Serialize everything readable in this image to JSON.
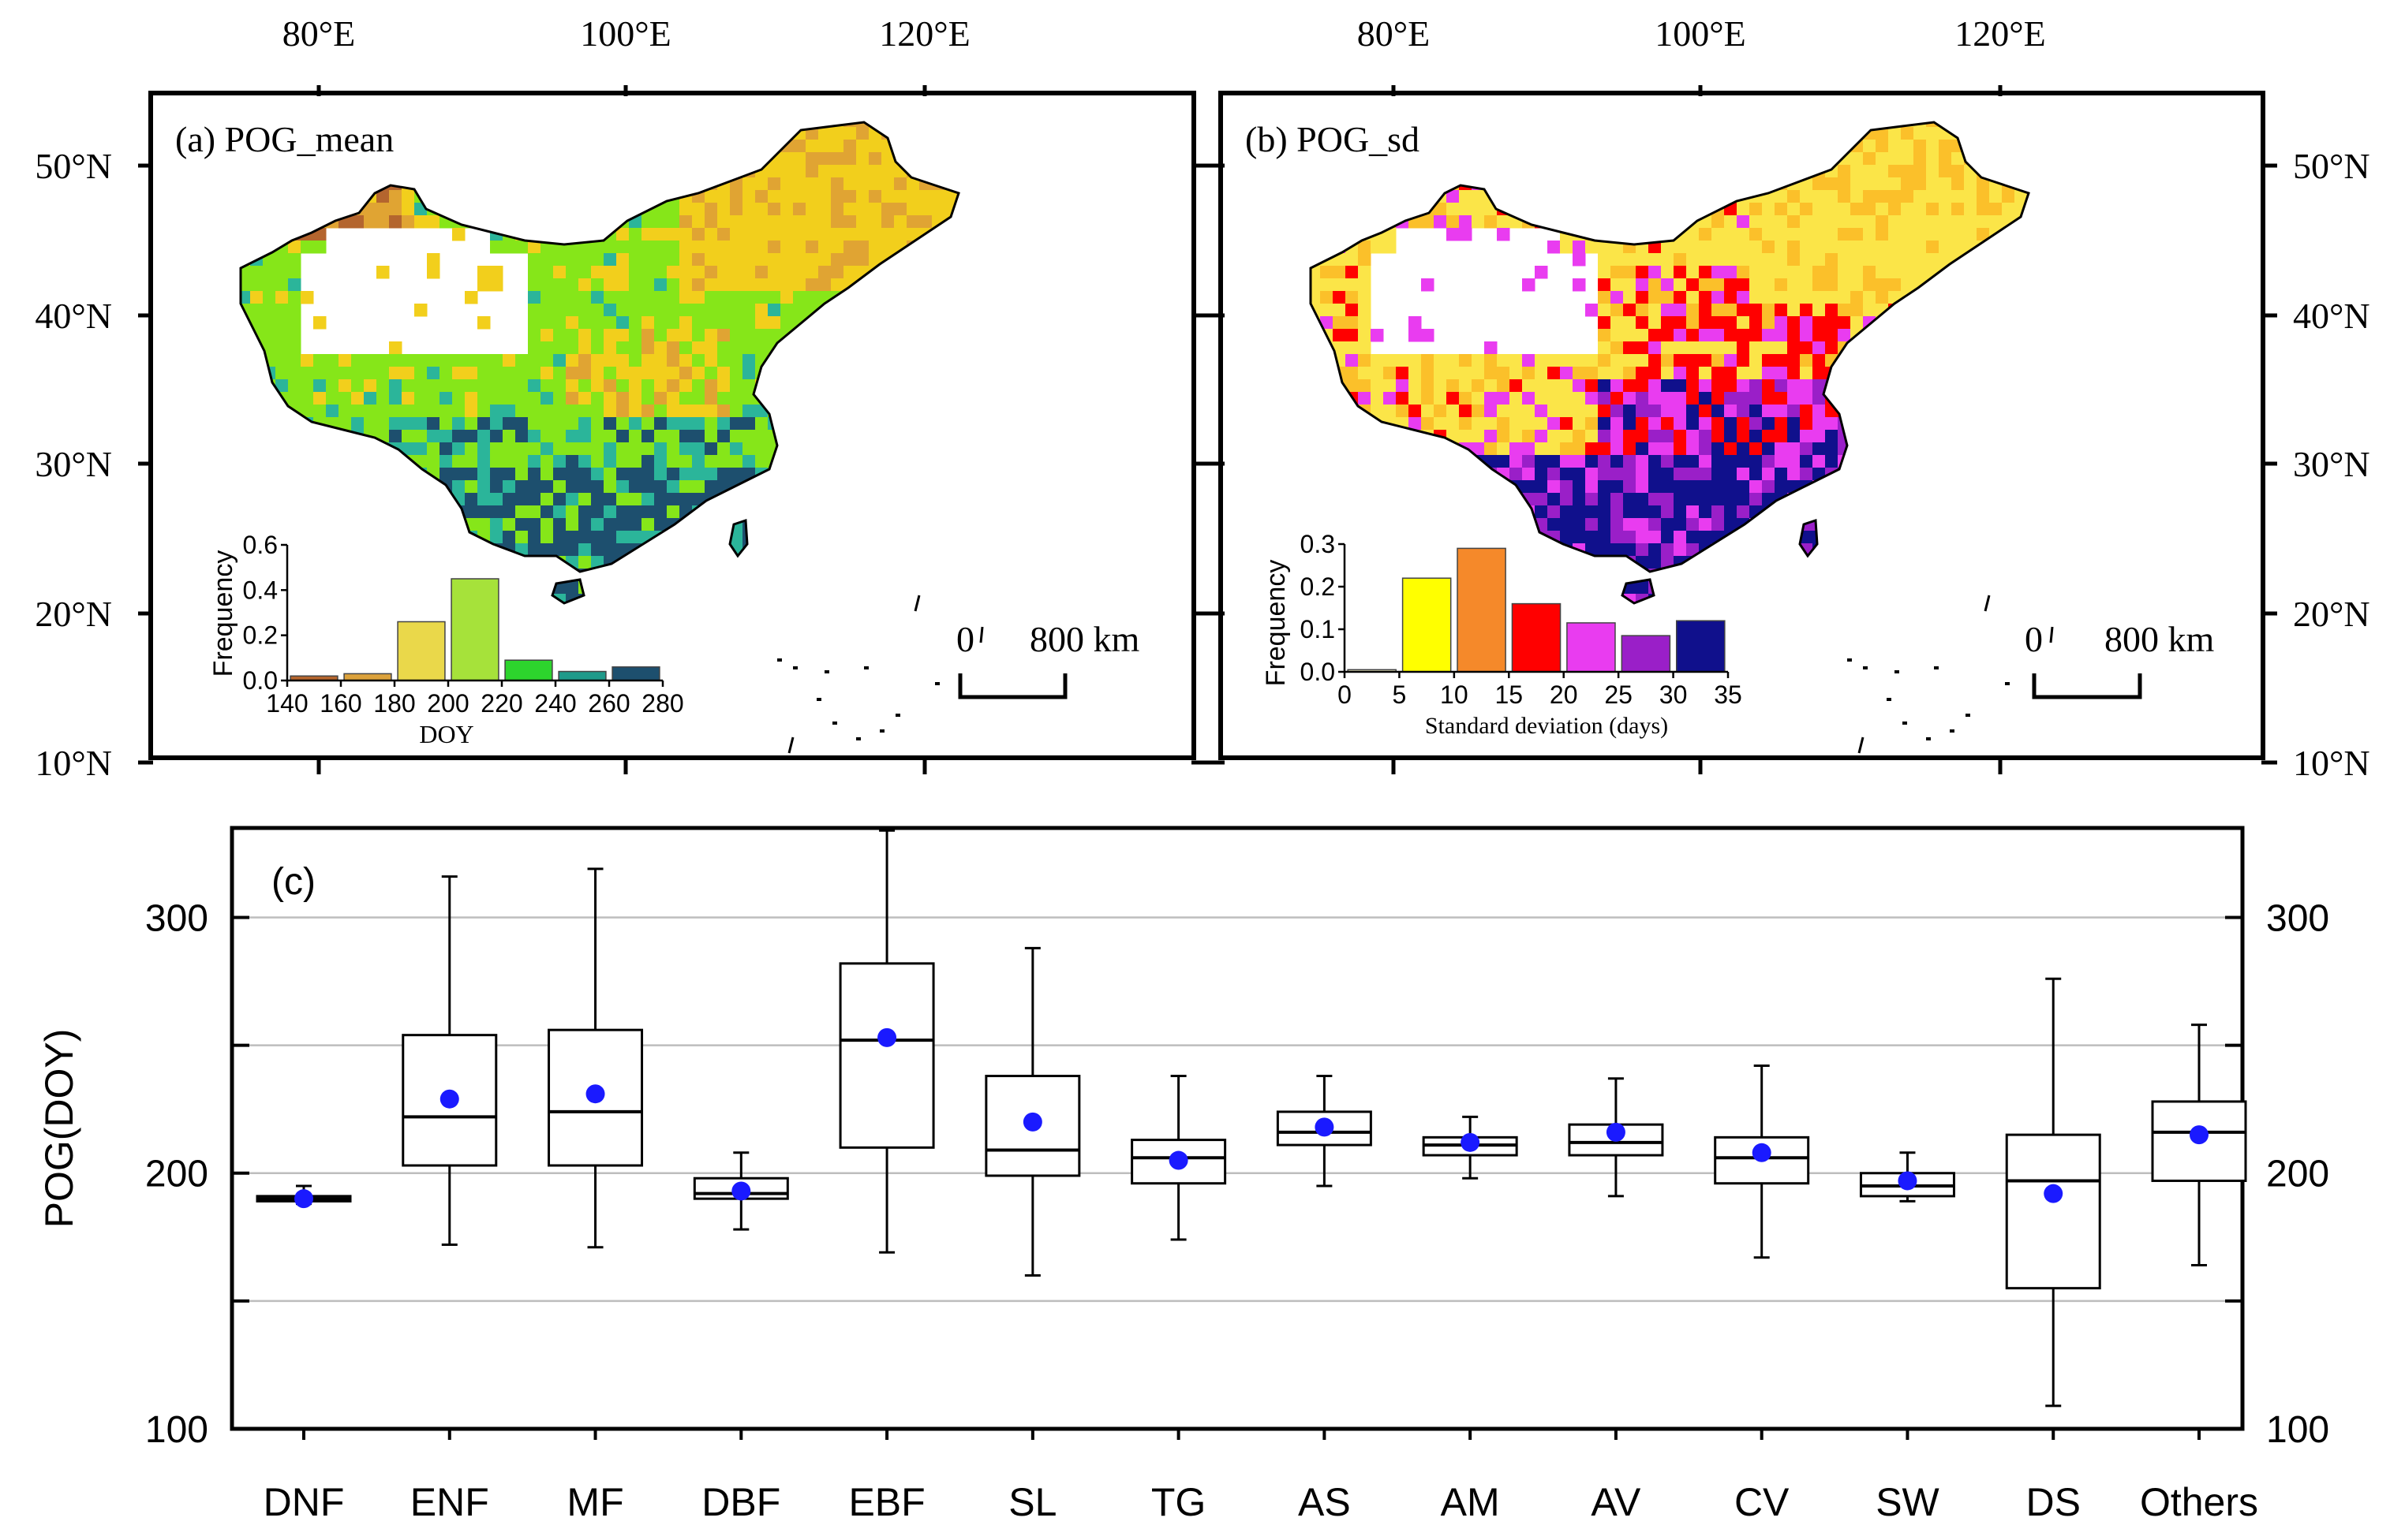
{
  "colors": {
    "doy_140_160": "#b4652e",
    "doy_160_180": "#dca23c",
    "doy_180_200": "#ead84a",
    "doy_200_220": "#a6e23a",
    "doy_220_240": "#2dd42d",
    "doy_240_260": "#1f9a8a",
    "doy_260_280": "#1d4f6e",
    "sd_0_5": "#f2efc4",
    "sd_5_10": "#ffff00",
    "sd_10_15": "#f5892a",
    "sd_15_20": "#ff0000",
    "sd_20_25": "#e93cf0",
    "sd_25_30": "#9a1fc8",
    "sd_30_35": "#10108c",
    "mean_marker": "#1a1aff",
    "land_green": "#86e619",
    "land_yellow": "#f2cf1c",
    "land_orange": "#e0a433",
    "land_teal": "#2bb59a",
    "land_dark": "#1d4f6e",
    "sd_land_yellow": "#fbe548",
    "sd_land_orange": "#fbc02a"
  },
  "chart_data": [
    {
      "type": "map",
      "panel_label": "(a) POG_mean",
      "lon_ticks": [
        "80°E",
        "100°E",
        "120°E"
      ],
      "lat_ticks": [
        "50°N",
        "40°N",
        "30°N",
        "20°N",
        "10°N"
      ],
      "scale_bar": {
        "start": "0",
        "end": "800 km"
      },
      "inset": {
        "type": "bar",
        "xlabel": "DOY",
        "ylabel": "Frequency",
        "x_ticks": [
          "140",
          "160",
          "180",
          "200",
          "220",
          "240",
          "260",
          "280"
        ],
        "y_ticks": [
          "0.0",
          "0.2",
          "0.4",
          "0.6"
        ],
        "ylim": [
          0,
          0.6
        ],
        "bins": [
          [
            140,
            160
          ],
          [
            160,
            180
          ],
          [
            180,
            200
          ],
          [
            200,
            220
          ],
          [
            220,
            240
          ],
          [
            240,
            260
          ],
          [
            260,
            280
          ]
        ],
        "values": [
          0.02,
          0.03,
          0.26,
          0.45,
          0.09,
          0.04,
          0.06
        ],
        "bar_colors": [
          "#b4652e",
          "#dca23c",
          "#ead84a",
          "#a6e23a",
          "#2dd42d",
          "#1f9a8a",
          "#1d4f6e"
        ]
      }
    },
    {
      "type": "map",
      "panel_label": "(b) POG_sd",
      "lon_ticks": [
        "80°E",
        "100°E",
        "120°E"
      ],
      "lat_ticks": [
        "50°N",
        "40°N",
        "30°N",
        "20°N",
        "10°N"
      ],
      "scale_bar": {
        "start": "0",
        "end": "800 km"
      },
      "inset": {
        "type": "bar",
        "xlabel": "Standard deviation (days)",
        "ylabel": "Frequency",
        "x_ticks": [
          "0",
          "5",
          "10",
          "15",
          "20",
          "25",
          "30",
          "35"
        ],
        "y_ticks": [
          "0.0",
          "0.1",
          "0.2",
          "0.3"
        ],
        "ylim": [
          0,
          0.3
        ],
        "bins": [
          [
            0,
            5
          ],
          [
            5,
            10
          ],
          [
            10,
            15
          ],
          [
            15,
            20
          ],
          [
            20,
            25
          ],
          [
            25,
            30
          ],
          [
            30,
            35
          ]
        ],
        "values": [
          0.005,
          0.22,
          0.29,
          0.16,
          0.115,
          0.085,
          0.12
        ],
        "bar_colors": [
          "#f2efc4",
          "#ffff00",
          "#f5892a",
          "#ff0000",
          "#e93cf0",
          "#9a1fc8",
          "#10108c"
        ]
      }
    },
    {
      "type": "box",
      "panel_label": "(c)",
      "ylabel": "POG(DOY)",
      "ylim": [
        100,
        335
      ],
      "y_ticks": [
        100,
        200,
        300
      ],
      "gridlines": [
        150,
        200,
        250,
        300
      ],
      "categories": [
        "DNF",
        "ENF",
        "MF",
        "DBF",
        "EBF",
        "SL",
        "TG",
        "AS",
        "AM",
        "AV",
        "CV",
        "SW",
        "DS",
        "Others"
      ],
      "boxes": [
        {
          "min": 188,
          "q1": 189,
          "median": 190,
          "q3": 191,
          "max": 195,
          "mean": 190
        },
        {
          "min": 172,
          "q1": 203,
          "median": 222,
          "q3": 254,
          "max": 316,
          "mean": 229
        },
        {
          "min": 171,
          "q1": 203,
          "median": 224,
          "q3": 256,
          "max": 319,
          "mean": 231
        },
        {
          "min": 178,
          "q1": 190,
          "median": 192,
          "q3": 198,
          "max": 208,
          "mean": 193
        },
        {
          "min": 169,
          "q1": 210,
          "median": 252,
          "q3": 282,
          "max": 334,
          "mean": 253
        },
        {
          "min": 160,
          "q1": 199,
          "median": 209,
          "q3": 238,
          "max": 288,
          "mean": 220
        },
        {
          "min": 174,
          "q1": 196,
          "median": 206,
          "q3": 213,
          "max": 238,
          "mean": 205
        },
        {
          "min": 195,
          "q1": 211,
          "median": 216,
          "q3": 224,
          "max": 238,
          "mean": 218
        },
        {
          "min": 198,
          "q1": 207,
          "median": 211,
          "q3": 214,
          "max": 222,
          "mean": 212
        },
        {
          "min": 191,
          "q1": 207,
          "median": 212,
          "q3": 219,
          "max": 237,
          "mean": 216
        },
        {
          "min": 167,
          "q1": 196,
          "median": 206,
          "q3": 214,
          "max": 242,
          "mean": 208
        },
        {
          "min": 189,
          "q1": 191,
          "median": 195,
          "q3": 200,
          "max": 208,
          "mean": 197
        },
        {
          "min": 109,
          "q1": 155,
          "median": 197,
          "q3": 215,
          "max": 276,
          "mean": 192
        },
        {
          "min": 164,
          "q1": 197,
          "median": 216,
          "q3": 228,
          "max": 258,
          "mean": 215
        }
      ]
    }
  ]
}
